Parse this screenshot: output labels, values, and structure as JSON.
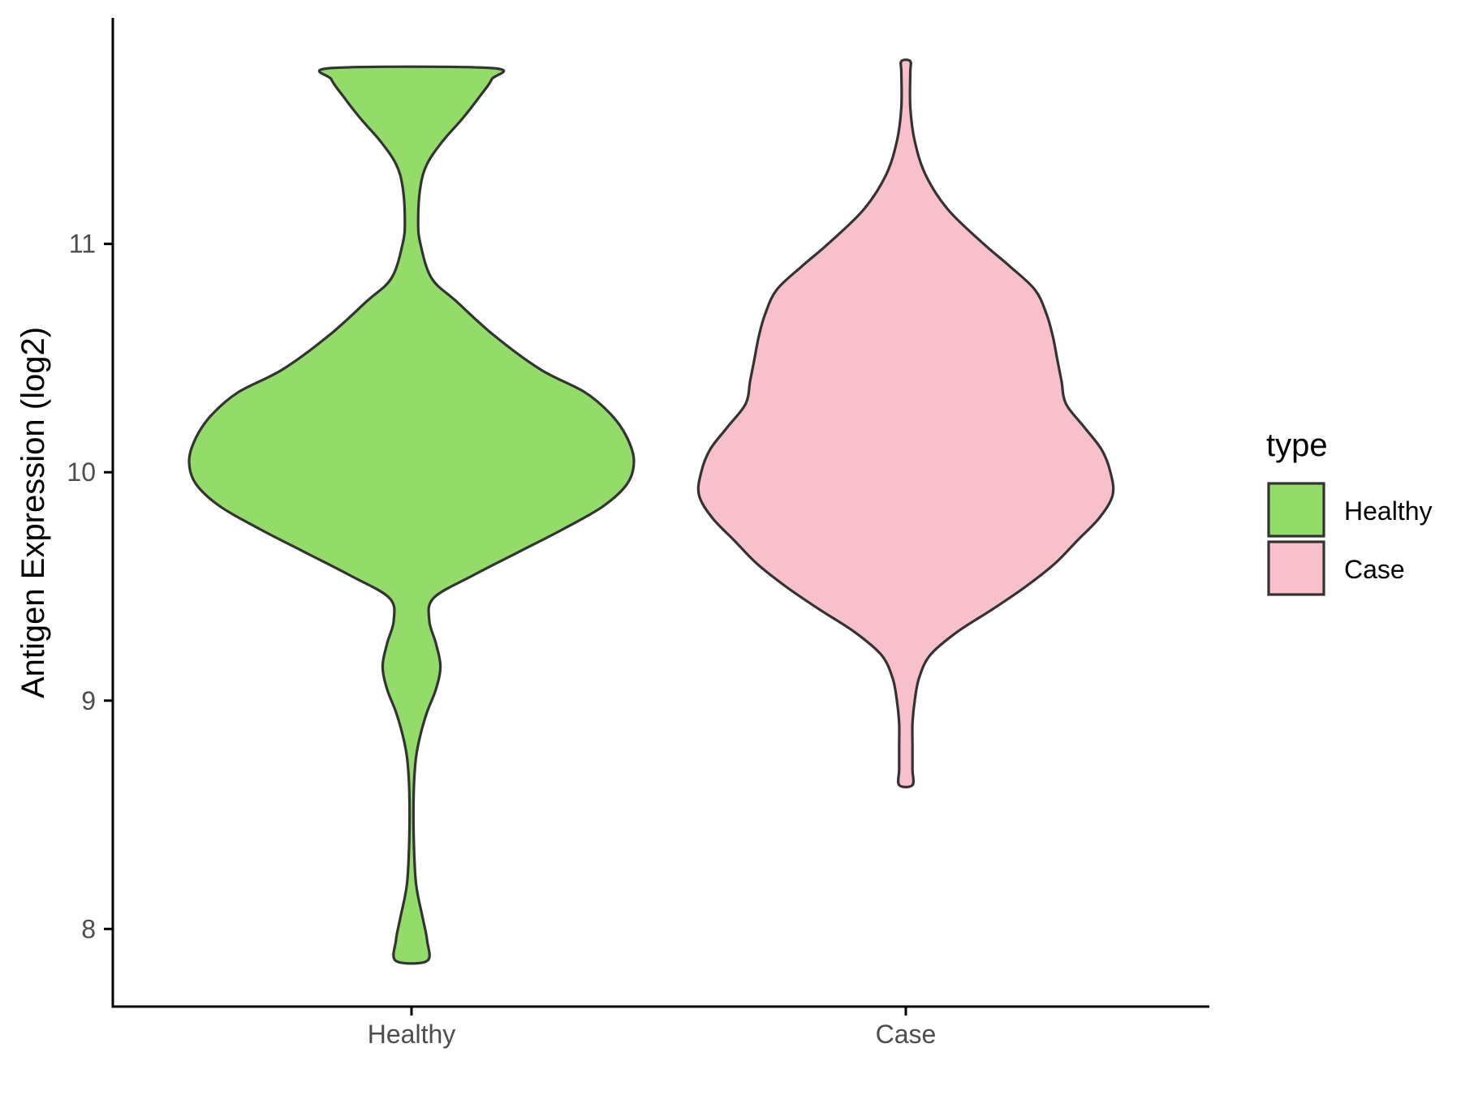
{
  "chart_data": {
    "type": "violin",
    "ylabel": "Antigen Expression (log2)",
    "xlabel": "",
    "ylim": [
      7.66,
      11.99
    ],
    "yticks": [
      8,
      9,
      10,
      11
    ],
    "categories": [
      "Healthy",
      "Case"
    ],
    "legend": {
      "title": "type",
      "placement": "right",
      "entries": [
        "Healthy",
        "Case"
      ]
    },
    "series": [
      {
        "name": "Healthy",
        "color": "#93DC6A",
        "density": [
          [
            11.77,
            0.36
          ],
          [
            11.72,
            0.36
          ],
          [
            11.65,
            0.31
          ],
          [
            11.55,
            0.23
          ],
          [
            11.45,
            0.14
          ],
          [
            11.35,
            0.07
          ],
          [
            11.25,
            0.04
          ],
          [
            11.1,
            0.03
          ],
          [
            11.0,
            0.04
          ],
          [
            10.85,
            0.09
          ],
          [
            10.75,
            0.2
          ],
          [
            10.6,
            0.37
          ],
          [
            10.45,
            0.58
          ],
          [
            10.35,
            0.78
          ],
          [
            10.25,
            0.9
          ],
          [
            10.15,
            0.97
          ],
          [
            10.05,
            1.0
          ],
          [
            9.95,
            0.97
          ],
          [
            9.85,
            0.86
          ],
          [
            9.75,
            0.68
          ],
          [
            9.65,
            0.48
          ],
          [
            9.55,
            0.28
          ],
          [
            9.45,
            0.1
          ],
          [
            9.35,
            0.08
          ],
          [
            9.25,
            0.11
          ],
          [
            9.15,
            0.13
          ],
          [
            9.05,
            0.11
          ],
          [
            8.95,
            0.07
          ],
          [
            8.85,
            0.04
          ],
          [
            8.75,
            0.02
          ],
          [
            8.6,
            0.01
          ],
          [
            8.4,
            0.01
          ],
          [
            8.2,
            0.02
          ],
          [
            8.05,
            0.05
          ],
          [
            7.95,
            0.07
          ],
          [
            7.86,
            0.07
          ]
        ]
      },
      {
        "name": "Case",
        "color": "#F7C0CB",
        "density": [
          [
            11.8,
            0.02
          ],
          [
            11.75,
            0.02
          ],
          [
            11.6,
            0.02
          ],
          [
            11.45,
            0.04
          ],
          [
            11.3,
            0.09
          ],
          [
            11.15,
            0.19
          ],
          [
            11.0,
            0.35
          ],
          [
            10.9,
            0.47
          ],
          [
            10.8,
            0.58
          ],
          [
            10.7,
            0.63
          ],
          [
            10.6,
            0.66
          ],
          [
            10.5,
            0.68
          ],
          [
            10.4,
            0.7
          ],
          [
            10.3,
            0.72
          ],
          [
            10.2,
            0.8
          ],
          [
            10.1,
            0.88
          ],
          [
            10.0,
            0.92
          ],
          [
            9.9,
            0.93
          ],
          [
            9.8,
            0.87
          ],
          [
            9.7,
            0.77
          ],
          [
            9.6,
            0.67
          ],
          [
            9.5,
            0.54
          ],
          [
            9.4,
            0.39
          ],
          [
            9.3,
            0.23
          ],
          [
            9.2,
            0.11
          ],
          [
            9.1,
            0.06
          ],
          [
            9.0,
            0.04
          ],
          [
            8.9,
            0.03
          ],
          [
            8.8,
            0.03
          ],
          [
            8.7,
            0.03
          ],
          [
            8.63,
            0.03
          ]
        ]
      }
    ]
  }
}
